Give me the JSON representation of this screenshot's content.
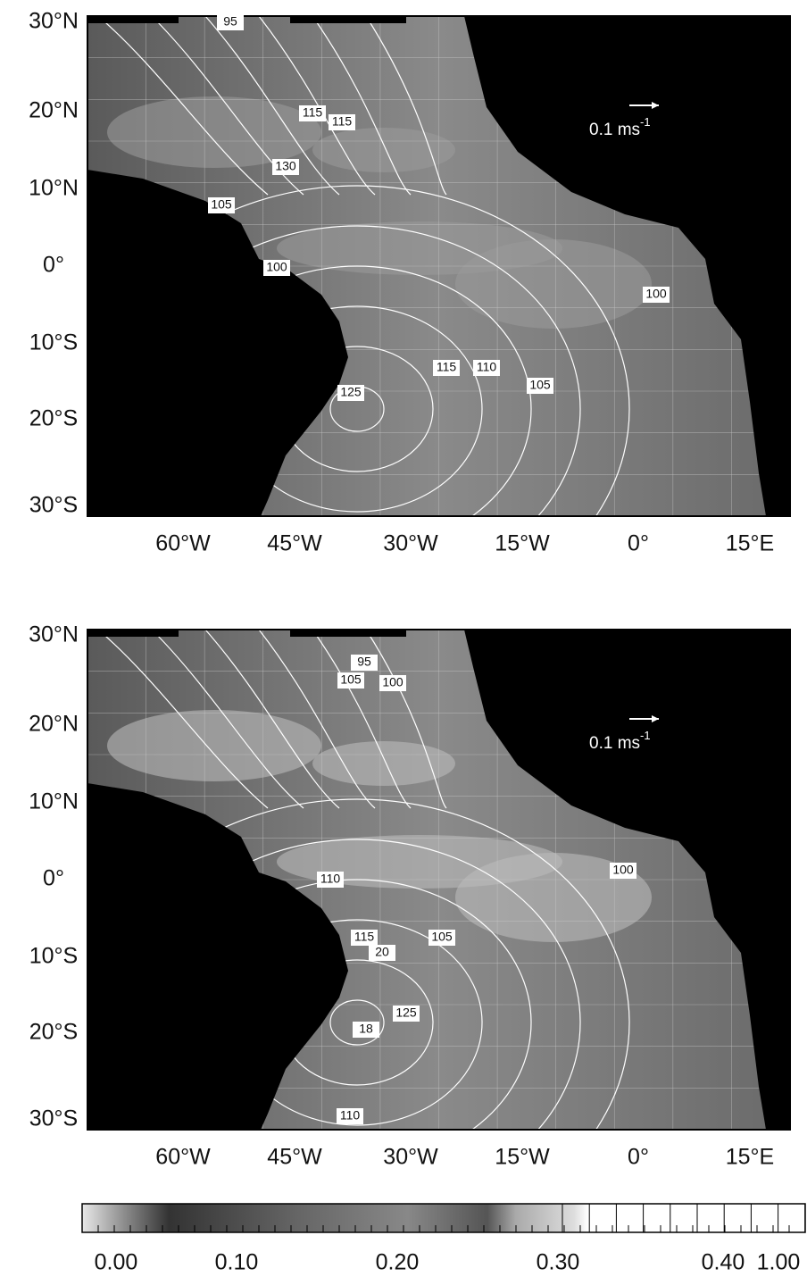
{
  "panels": [
    {
      "lat_labels": [
        "30°N",
        "20°N",
        "10°N",
        "0°",
        "10°S",
        "20°S",
        "30°S"
      ],
      "lon_labels": [
        "60°W",
        "45°W",
        "30°W",
        "15°W",
        "0°",
        "15°E"
      ],
      "contour_labels": [
        "95",
        "115",
        "115",
        "130",
        "105",
        "100",
        "100",
        "115",
        "110",
        "125",
        "105"
      ],
      "scale_label": "0.1 ms",
      "scale_exponent": "-1"
    },
    {
      "lat_labels": [
        "30°N",
        "20°N",
        "10°N",
        "0°",
        "10°S",
        "20°S",
        "30°S"
      ],
      "lon_labels": [
        "60°W",
        "45°W",
        "30°W",
        "15°W",
        "0°",
        "15°E"
      ],
      "contour_labels": [
        "95",
        "105",
        "100",
        "110",
        "100",
        "115",
        "105",
        "20",
        "125",
        "18",
        "110"
      ],
      "scale_label": "0.1 ms",
      "scale_exponent": "-1"
    }
  ],
  "colorbar": {
    "labels": [
      "0.00",
      "0.10",
      "0.20",
      "0.30",
      "0.40",
      "1.00"
    ]
  }
}
